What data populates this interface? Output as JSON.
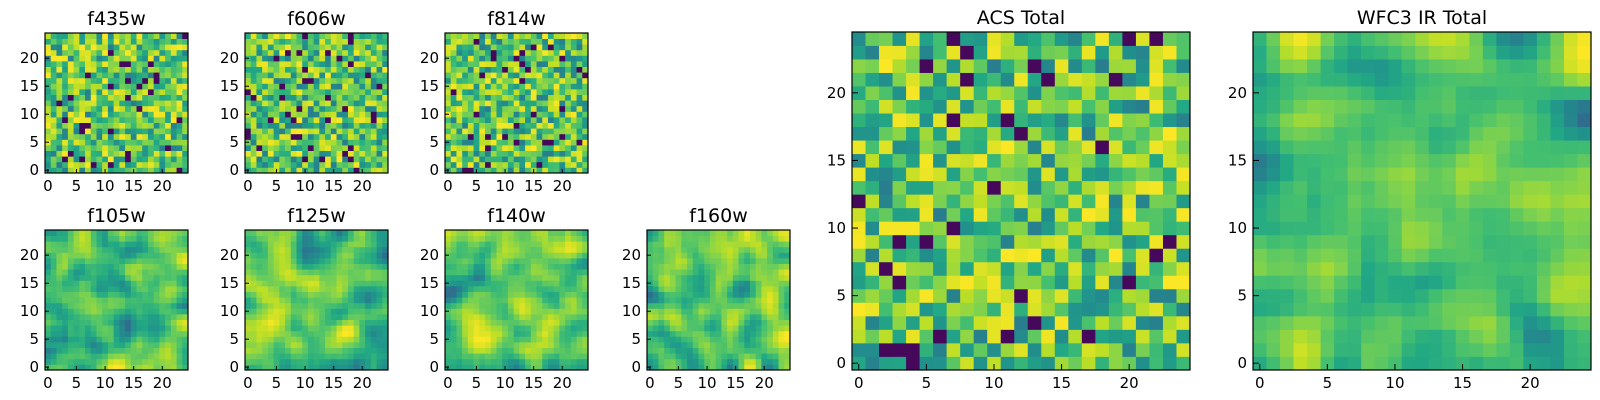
{
  "chart_data": {
    "type": "heatmap",
    "colormap": "viridis",
    "panels": [
      {
        "key": "f435w",
        "title": "f435w",
        "grid_size": 25,
        "xlim": [
          0,
          24
        ],
        "ylim": [
          0,
          24
        ],
        "xticks": [
          0,
          5,
          10,
          15,
          20
        ],
        "yticks": [
          0,
          5,
          10,
          15,
          20
        ],
        "smooth": 0,
        "seed": 11
      },
      {
        "key": "f606w",
        "title": "f606w",
        "grid_size": 25,
        "xlim": [
          0,
          24
        ],
        "ylim": [
          0,
          24
        ],
        "xticks": [
          0,
          5,
          10,
          15,
          20
        ],
        "yticks": [
          0,
          5,
          10,
          15,
          20
        ],
        "smooth": 0,
        "seed": 23
      },
      {
        "key": "f814w",
        "title": "f814w",
        "grid_size": 25,
        "xlim": [
          0,
          24
        ],
        "ylim": [
          0,
          24
        ],
        "xticks": [
          0,
          5,
          10,
          15,
          20
        ],
        "yticks": [
          0,
          5,
          10,
          15,
          20
        ],
        "smooth": 0,
        "seed": 37
      },
      {
        "key": "f105w",
        "title": "f105w",
        "grid_size": 25,
        "xlim": [
          0,
          24
        ],
        "ylim": [
          0,
          24
        ],
        "xticks": [
          0,
          5,
          10,
          15,
          20
        ],
        "yticks": [
          0,
          5,
          10,
          15,
          20
        ],
        "smooth": 1,
        "seed": 41
      },
      {
        "key": "f125w",
        "title": "f125w",
        "grid_size": 25,
        "xlim": [
          0,
          24
        ],
        "ylim": [
          0,
          24
        ],
        "xticks": [
          0,
          5,
          10,
          15,
          20
        ],
        "yticks": [
          0,
          5,
          10,
          15,
          20
        ],
        "smooth": 1,
        "seed": 53
      },
      {
        "key": "f140w",
        "title": "f140w",
        "grid_size": 25,
        "xlim": [
          0,
          24
        ],
        "ylim": [
          0,
          24
        ],
        "xticks": [
          0,
          5,
          10,
          15,
          20
        ],
        "yticks": [
          0,
          5,
          10,
          15,
          20
        ],
        "smooth": 1,
        "seed": 67
      },
      {
        "key": "f160w",
        "title": "f160w",
        "grid_size": 25,
        "xlim": [
          0,
          24
        ],
        "ylim": [
          0,
          24
        ],
        "xticks": [
          0,
          5,
          10,
          15,
          20
        ],
        "yticks": [
          0,
          5,
          10,
          15,
          20
        ],
        "smooth": 1,
        "seed": 79
      },
      {
        "key": "acs_total",
        "title": "ACS Total",
        "grid_size": 25,
        "xlim": [
          0,
          24
        ],
        "ylim": [
          0,
          24
        ],
        "xticks": [
          0,
          5,
          10,
          15,
          20
        ],
        "yticks": [
          0,
          5,
          10,
          15,
          20
        ],
        "smooth": 0,
        "seed": 97
      },
      {
        "key": "wfc3_ir_total",
        "title": "WFC3 IR Total",
        "grid_size": 25,
        "xlim": [
          0,
          24
        ],
        "ylim": [
          0,
          24
        ],
        "xticks": [
          0,
          5,
          10,
          15,
          20
        ],
        "yticks": [
          0,
          5,
          10,
          15,
          20
        ],
        "smooth": 1,
        "seed": 113
      }
    ]
  }
}
